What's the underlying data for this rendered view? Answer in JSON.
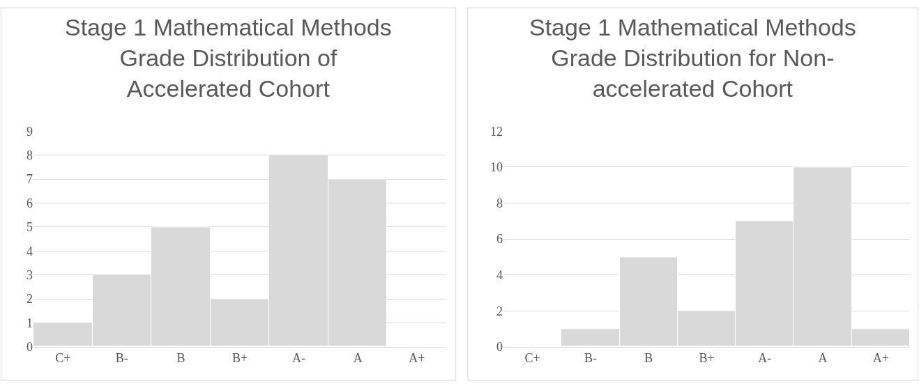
{
  "chart_data": [
    {
      "type": "bar",
      "title": "Stage 1 Mathematical Methods Grade Distribution of Accelerated Cohort",
      "categories": [
        "C+",
        "B-",
        "B",
        "B+",
        "A-",
        "A",
        "A+"
      ],
      "values": [
        1,
        3,
        5,
        2,
        8,
        7,
        0
      ],
      "color": "#d9d9d9",
      "ylim": [
        0,
        9
      ],
      "yticks": [
        0,
        1,
        2,
        3,
        4,
        5,
        6,
        7,
        8,
        9
      ],
      "grid": "y"
    },
    {
      "type": "bar",
      "title": "Stage 1 Mathematical Methods Grade Distribution for Non-accelerated Cohort",
      "categories": [
        "C+",
        "B-",
        "B",
        "B+",
        "A-",
        "A",
        "A+"
      ],
      "values": [
        0,
        1,
        5,
        2,
        7,
        10,
        1
      ],
      "color": "#d9d9d9",
      "ylim": [
        0,
        12
      ],
      "yticks": [
        0,
        2,
        4,
        6,
        8,
        10,
        12
      ],
      "grid": "y"
    }
  ]
}
